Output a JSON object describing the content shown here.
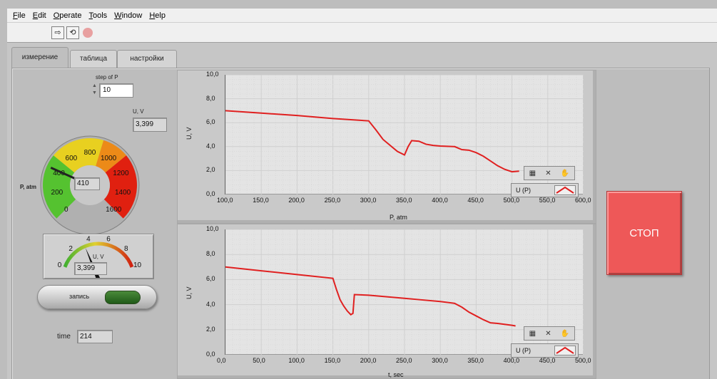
{
  "menu": {
    "items": [
      {
        "label": "File",
        "key": "F",
        "rest": "ile"
      },
      {
        "label": "Edit",
        "key": "E",
        "rest": "dit"
      },
      {
        "label": "Operate",
        "key": "O",
        "rest": "perate"
      },
      {
        "label": "Tools",
        "key": "T",
        "rest": "ools"
      },
      {
        "label": "Window",
        "key": "W",
        "rest": "indow"
      },
      {
        "label": "Help",
        "key": "H",
        "rest": "elp"
      }
    ]
  },
  "toolbar": {
    "run_icon": "run-arrow-icon",
    "run_continuous_icon": "run-continuously-icon",
    "abort_icon": "abort-icon",
    "run_glyph": "⇨",
    "run_continuous_glyph": "⟲"
  },
  "tabs": [
    {
      "label": "измерение",
      "active": true
    },
    {
      "label": "таблица",
      "active": false
    },
    {
      "label": "настройки",
      "active": false
    }
  ],
  "controls": {
    "step_label": "step of P",
    "step_value": "10",
    "uv_label": "U, V",
    "uv_value": "3,399",
    "gauge_label": "P, atm",
    "gauge_value": "410",
    "gauge_ticks": [
      "0",
      "200",
      "400",
      "600",
      "800",
      "1000",
      "1200",
      "1400",
      "1600"
    ],
    "gauge_min": 0,
    "gauge_max": 1600,
    "gauge_reading": 410,
    "meter_ticks": [
      "0",
      "2",
      "4",
      "6",
      "8",
      "10"
    ],
    "meter_label": "U, V",
    "meter_value": "3,399",
    "meter_min": 0,
    "meter_max": 10,
    "meter_reading": 3.399,
    "record_label": "запись",
    "time_label": "time",
    "time_value": "214",
    "stop_label": "СТОП"
  },
  "colors": {
    "trace": "#e02020",
    "stop_button": "#ee5858",
    "record_led": "#2f6e25",
    "gauge_green": "#55c230",
    "gauge_yellow": "#e8d020",
    "gauge_red": "#e02010"
  },
  "graphs": {
    "palette_icons": [
      "zoom-icon",
      "cursor-tool-icon",
      "hand-pan-icon"
    ],
    "top": {
      "ylabel": "U, V",
      "xlabel": "P, atm",
      "xticks": [
        "100,0",
        "150,0",
        "200,0",
        "250,0",
        "300,0",
        "350,0",
        "400,0",
        "450,0",
        "500,0",
        "550,0",
        "600,0"
      ],
      "yticks": [
        "0,0",
        "2,0",
        "4,0",
        "6,0",
        "8,0",
        "10,0"
      ],
      "legend": "U (P)"
    },
    "bottom": {
      "ylabel": "U, V",
      "xlabel": "t, sec",
      "xticks": [
        "0,0",
        "50,0",
        "100,0",
        "150,0",
        "200,0",
        "250,0",
        "300,0",
        "350,0",
        "400,0",
        "450,0",
        "500,0"
      ],
      "yticks": [
        "0,0",
        "2,0",
        "4,0",
        "6,0",
        "8,0",
        "10,0"
      ],
      "legend": "U (P)"
    }
  },
  "chart_data": [
    {
      "type": "line",
      "xlabel": "P, atm",
      "ylabel": "U, V",
      "xlim": [
        100,
        600
      ],
      "ylim": [
        0,
        10
      ],
      "grid": true,
      "legend": "bottom-right",
      "series": [
        {
          "name": "U (P)",
          "x": [
            100,
            150,
            200,
            250,
            300,
            310,
            320,
            330,
            340,
            350,
            355,
            360,
            370,
            380,
            390,
            400,
            420,
            430,
            440,
            450,
            460,
            470,
            480,
            490,
            500,
            510
          ],
          "y": [
            7.0,
            6.8,
            6.6,
            6.35,
            6.15,
            5.4,
            4.6,
            4.1,
            3.6,
            3.3,
            4.0,
            4.5,
            4.45,
            4.2,
            4.1,
            4.05,
            4.0,
            3.75,
            3.7,
            3.5,
            3.2,
            2.8,
            2.4,
            2.1,
            1.9,
            1.95
          ]
        }
      ]
    },
    {
      "type": "line",
      "xlabel": "t, sec",
      "ylabel": "U, V",
      "xlim": [
        0,
        500
      ],
      "ylim": [
        0,
        10
      ],
      "grid": true,
      "legend": "bottom-right",
      "series": [
        {
          "name": "U (P)",
          "x": [
            0,
            50,
            100,
            150,
            155,
            160,
            165,
            170,
            175,
            178,
            180,
            200,
            250,
            270,
            300,
            320,
            330,
            340,
            350,
            360,
            370,
            380,
            400,
            405
          ],
          "y": [
            7.0,
            6.7,
            6.4,
            6.1,
            5.2,
            4.4,
            3.9,
            3.5,
            3.2,
            3.3,
            4.8,
            4.75,
            4.5,
            4.4,
            4.25,
            4.1,
            3.8,
            3.4,
            3.1,
            2.8,
            2.55,
            2.5,
            2.35,
            2.3
          ]
        }
      ]
    }
  ]
}
